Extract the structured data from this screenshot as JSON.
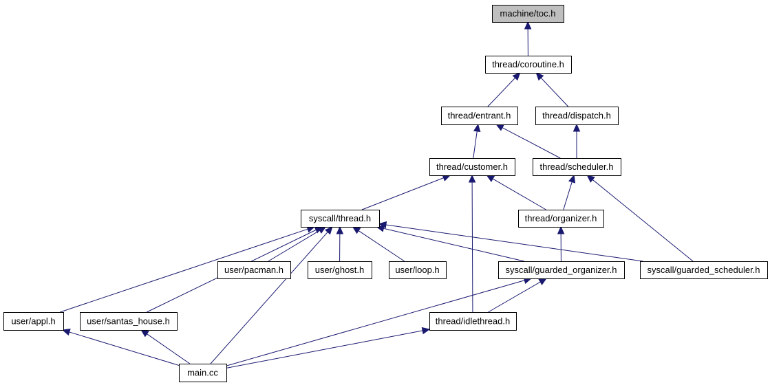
{
  "colors": {
    "edge": "#191970",
    "node_border": "#000000",
    "root_fill": "#bfbfbf",
    "node_fill": "#ffffff"
  },
  "nodes": [
    {
      "id": "toc",
      "label": "machine/toc.h",
      "highlighted": true
    },
    {
      "id": "coroutine",
      "label": "thread/coroutine.h"
    },
    {
      "id": "entrant",
      "label": "thread/entrant.h"
    },
    {
      "id": "dispatch",
      "label": "thread/dispatch.h"
    },
    {
      "id": "customer",
      "label": "thread/customer.h"
    },
    {
      "id": "scheduler",
      "label": "thread/scheduler.h"
    },
    {
      "id": "sthread",
      "label": "syscall/thread.h"
    },
    {
      "id": "organizer",
      "label": "thread/organizer.h"
    },
    {
      "id": "pacman",
      "label": "user/pacman.h"
    },
    {
      "id": "ghost",
      "label": "user/ghost.h"
    },
    {
      "id": "loop",
      "label": "user/loop.h"
    },
    {
      "id": "gorganizer",
      "label": "syscall/guarded_organizer.h"
    },
    {
      "id": "gscheduler",
      "label": "syscall/guarded_scheduler.h"
    },
    {
      "id": "appl",
      "label": "user/appl.h"
    },
    {
      "id": "santas",
      "label": "user/santas_house.h"
    },
    {
      "id": "idle",
      "label": "thread/idlethread.h"
    },
    {
      "id": "main",
      "label": "main.cc"
    }
  ],
  "edges": [
    {
      "from": "coroutine",
      "to": "toc"
    },
    {
      "from": "entrant",
      "to": "coroutine"
    },
    {
      "from": "dispatch",
      "to": "coroutine"
    },
    {
      "from": "customer",
      "to": "entrant"
    },
    {
      "from": "scheduler",
      "to": "entrant"
    },
    {
      "from": "scheduler",
      "to": "dispatch"
    },
    {
      "from": "sthread",
      "to": "customer"
    },
    {
      "from": "organizer",
      "to": "customer"
    },
    {
      "from": "idle",
      "to": "customer"
    },
    {
      "from": "organizer",
      "to": "scheduler"
    },
    {
      "from": "gscheduler",
      "to": "scheduler"
    },
    {
      "from": "pacman",
      "to": "sthread"
    },
    {
      "from": "ghost",
      "to": "sthread"
    },
    {
      "from": "loop",
      "to": "sthread"
    },
    {
      "from": "gorganizer",
      "to": "sthread"
    },
    {
      "from": "gscheduler",
      "to": "sthread"
    },
    {
      "from": "appl",
      "to": "sthread"
    },
    {
      "from": "santas",
      "to": "sthread"
    },
    {
      "from": "main",
      "to": "sthread"
    },
    {
      "from": "gorganizer",
      "to": "organizer"
    },
    {
      "from": "idle",
      "to": "gorganizer"
    },
    {
      "from": "main",
      "to": "gorganizer"
    },
    {
      "from": "main",
      "to": "appl"
    },
    {
      "from": "main",
      "to": "santas"
    },
    {
      "from": "main",
      "to": "idle"
    }
  ]
}
